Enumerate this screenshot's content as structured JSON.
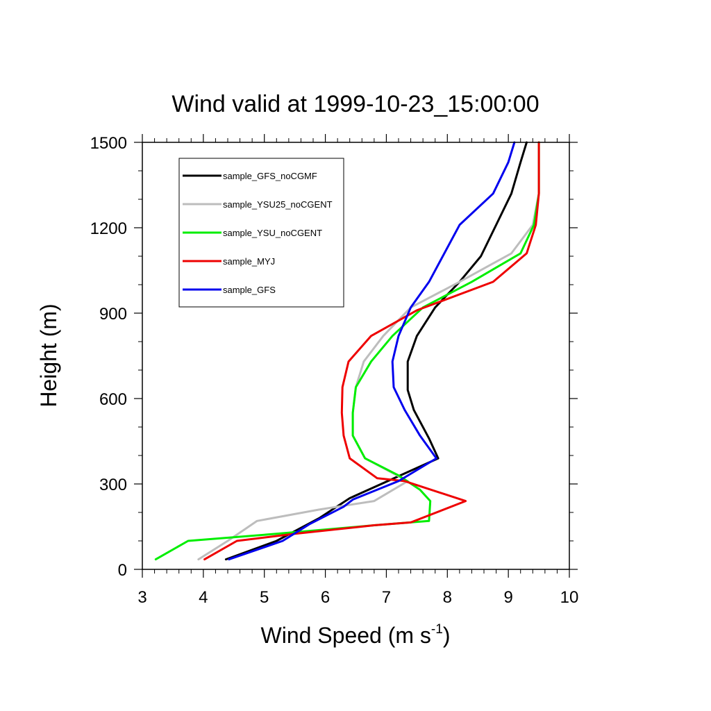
{
  "chart_data": {
    "type": "line",
    "title": "Wind valid at 1999-10-23_15:00:00",
    "xlabel_main": "Wind Speed (m s",
    "xlabel_sup": "-1",
    "xlabel_close": ")",
    "ylabel": "Height (m)",
    "xlim": [
      3,
      10
    ],
    "ylim": [
      0,
      1500
    ],
    "xticks": [
      3,
      4,
      5,
      6,
      7,
      8,
      9,
      10
    ],
    "yticks": [
      0,
      300,
      600,
      900,
      1200,
      1500
    ],
    "legend_position": "top-left",
    "series": [
      {
        "name": "sample_GFS_noCGMF",
        "color": "#000000",
        "points": [
          [
            4.37,
            35
          ],
          [
            5.2,
            100
          ],
          [
            5.9,
            180
          ],
          [
            6.4,
            250
          ],
          [
            7.85,
            390
          ],
          [
            7.7,
            460
          ],
          [
            7.45,
            560
          ],
          [
            7.35,
            630
          ],
          [
            7.35,
            730
          ],
          [
            7.5,
            820
          ],
          [
            7.8,
            920
          ],
          [
            8.2,
            1010
          ],
          [
            8.55,
            1100
          ],
          [
            8.8,
            1210
          ],
          [
            9.05,
            1320
          ],
          [
            9.2,
            1430
          ],
          [
            9.3,
            1500
          ]
        ]
      },
      {
        "name": "sample_YSU25_noCGENT",
        "color": "#bdbdbd",
        "points": [
          [
            3.92,
            35
          ],
          [
            4.4,
            100
          ],
          [
            4.88,
            170
          ],
          [
            5.9,
            210
          ],
          [
            6.8,
            240
          ],
          [
            7.35,
            310
          ],
          [
            6.65,
            390
          ],
          [
            6.45,
            470
          ],
          [
            6.45,
            550
          ],
          [
            6.5,
            640
          ],
          [
            6.63,
            730
          ],
          [
            6.95,
            820
          ],
          [
            7.4,
            920
          ],
          [
            8.2,
            1010
          ],
          [
            9.05,
            1110
          ],
          [
            9.4,
            1210
          ],
          [
            9.5,
            1320
          ],
          [
            9.5,
            1500
          ]
        ]
      },
      {
        "name": "sample_YSU_noCGENT",
        "color": "#00ee00",
        "points": [
          [
            3.22,
            35
          ],
          [
            3.75,
            100
          ],
          [
            5.2,
            125
          ],
          [
            6.8,
            155
          ],
          [
            7.7,
            170
          ],
          [
            7.72,
            240
          ],
          [
            7.55,
            280
          ],
          [
            7.2,
            330
          ],
          [
            6.65,
            390
          ],
          [
            6.45,
            470
          ],
          [
            6.45,
            550
          ],
          [
            6.5,
            640
          ],
          [
            6.75,
            730
          ],
          [
            7.1,
            820
          ],
          [
            7.6,
            920
          ],
          [
            8.4,
            1010
          ],
          [
            9.2,
            1110
          ],
          [
            9.42,
            1210
          ],
          [
            9.5,
            1320
          ],
          [
            9.5,
            1500
          ]
        ]
      },
      {
        "name": "sample_MYJ",
        "color": "#ee0000",
        "points": [
          [
            4.02,
            35
          ],
          [
            4.55,
            100
          ],
          [
            5.5,
            125
          ],
          [
            6.8,
            155
          ],
          [
            7.4,
            165
          ],
          [
            8.3,
            240
          ],
          [
            7.3,
            310
          ],
          [
            6.85,
            320
          ],
          [
            6.4,
            390
          ],
          [
            6.3,
            470
          ],
          [
            6.27,
            550
          ],
          [
            6.28,
            640
          ],
          [
            6.38,
            730
          ],
          [
            6.75,
            820
          ],
          [
            7.5,
            910
          ],
          [
            8.75,
            1010
          ],
          [
            9.3,
            1110
          ],
          [
            9.45,
            1210
          ],
          [
            9.5,
            1320
          ],
          [
            9.5,
            1500
          ]
        ]
      },
      {
        "name": "sample_GFS",
        "color": "#0000ee",
        "points": [
          [
            4.42,
            35
          ],
          [
            5.3,
            100
          ],
          [
            5.75,
            160
          ],
          [
            6.3,
            220
          ],
          [
            6.45,
            245
          ],
          [
            7.2,
            310
          ],
          [
            7.82,
            390
          ],
          [
            7.55,
            470
          ],
          [
            7.3,
            560
          ],
          [
            7.12,
            640
          ],
          [
            7.1,
            730
          ],
          [
            7.2,
            820
          ],
          [
            7.4,
            920
          ],
          [
            7.7,
            1010
          ],
          [
            8.2,
            1210
          ],
          [
            8.75,
            1320
          ],
          [
            9.0,
            1430
          ],
          [
            9.1,
            1500
          ]
        ]
      }
    ]
  }
}
